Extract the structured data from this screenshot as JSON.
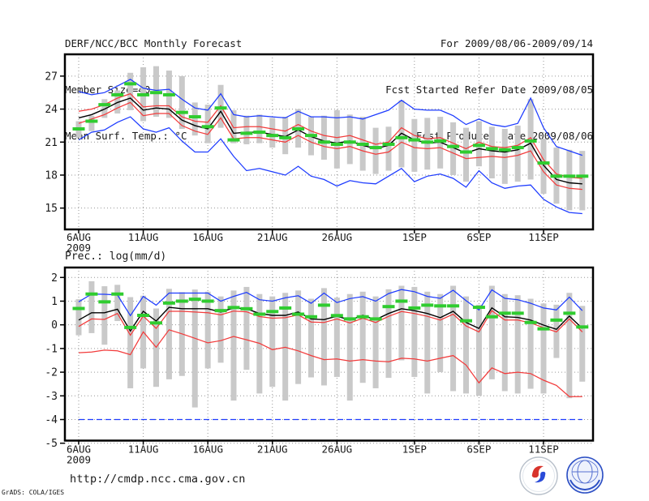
{
  "header": {
    "title": "DERF/NCC/BCC Monthly Forecast",
    "member_size": "Member Size=40",
    "temp_label": "Mean Surf. Temp.: °C",
    "for_range": "For 2009/08/06-2009/09/14",
    "fcst_started": "Fcst Started Refer Date 2009/08/05",
    "fcst_produced": "Fcst Produced Date 2009/08/06"
  },
  "footer": {
    "url": "http://cmdp.ncc.cma.gov.cn",
    "credit": "GrADS: COLA/IGES",
    "bcc_logo_text": "BCC",
    "ncc_logo_text": "NCC"
  },
  "colors": {
    "envelope": "#1e3cff",
    "spread": "#f23b3b",
    "mean": "#000000",
    "obs": "#2fcc2f",
    "bars": "#c9c9c9",
    "grid": "#969696",
    "axis": "#000000"
  },
  "chart_data": [
    {
      "type": "line",
      "id": "temp",
      "title": "Mean Surf. Temp.: °C",
      "ylim": [
        13.06,
        28.98
      ],
      "grid": true,
      "y_ticks": [
        {
          "label": "27",
          "v": 27
        },
        {
          "label": "24",
          "v": 24
        },
        {
          "label": "21",
          "v": 21
        },
        {
          "label": "18",
          "v": 18
        },
        {
          "label": "15",
          "v": 15
        }
      ],
      "x_ticks": [
        {
          "label": "6AUG",
          "sub": "2009",
          "day": 0
        },
        {
          "label": "11AUG",
          "day": 5
        },
        {
          "label": "16AUG",
          "day": 10
        },
        {
          "label": "21AUG",
          "day": 15
        },
        {
          "label": "26AUG",
          "day": 20
        },
        {
          "label": "1SEP",
          "day": 26
        },
        {
          "label": "6SEP",
          "day": 31
        },
        {
          "label": "11SEP",
          "day": 36
        }
      ],
      "n": 40,
      "series": [
        {
          "name": "ensemble-max",
          "color_key": "envelope",
          "style": "line",
          "values": [
            25.6,
            25.3,
            25.5,
            26.1,
            26.7,
            25.9,
            25.7,
            25.8,
            24.9,
            24.1,
            23.9,
            25.4,
            23.5,
            23.3,
            23.4,
            23.3,
            23.2,
            23.8,
            23.3,
            23.3,
            23.2,
            23.3,
            23.1,
            23.5,
            23.9,
            24.8,
            24.0,
            23.9,
            23.9,
            23.4,
            22.6,
            23.1,
            22.6,
            22.4,
            22.7,
            25.0,
            22.3,
            20.6,
            20.2,
            19.8
          ]
        },
        {
          "name": "mean-plus-spread",
          "color_key": "spread",
          "style": "line",
          "values": [
            23.8,
            24.0,
            24.4,
            25.0,
            25.4,
            24.2,
            24.3,
            24.3,
            23.3,
            22.9,
            22.8,
            24.3,
            22.3,
            22.4,
            22.4,
            22.2,
            22.0,
            22.6,
            22.0,
            21.6,
            21.4,
            21.6,
            21.2,
            20.8,
            21.0,
            22.3,
            21.6,
            21.3,
            21.4,
            20.9,
            20.4,
            21.0,
            20.6,
            20.5,
            20.7,
            21.4,
            19.4,
            18.1,
            17.8,
            17.7
          ]
        },
        {
          "name": "ensemble-mean",
          "color_key": "mean",
          "style": "line",
          "values": [
            23.2,
            23.5,
            24.0,
            24.6,
            25.0,
            23.9,
            24.1,
            24.0,
            23.0,
            22.5,
            22.2,
            23.8,
            21.8,
            21.9,
            21.9,
            21.7,
            21.5,
            22.1,
            21.5,
            21.1,
            20.9,
            21.1,
            20.7,
            20.4,
            20.7,
            21.8,
            21.2,
            20.9,
            21.0,
            20.5,
            20.0,
            20.4,
            20.2,
            20.1,
            20.3,
            20.9,
            18.9,
            17.6,
            17.3,
            17.2
          ]
        },
        {
          "name": "mean-minus-spread",
          "color_key": "spread",
          "style": "line",
          "values": [
            22.7,
            23.1,
            23.5,
            24.1,
            24.6,
            23.4,
            23.6,
            23.6,
            22.5,
            22.0,
            21.7,
            23.2,
            21.3,
            21.4,
            21.4,
            21.2,
            21.0,
            21.6,
            21.0,
            20.6,
            20.4,
            20.6,
            20.2,
            19.9,
            20.1,
            21.0,
            20.5,
            20.4,
            20.5,
            20.0,
            19.5,
            19.6,
            19.7,
            19.6,
            19.8,
            20.2,
            18.3,
            17.1,
            16.8,
            16.7
          ]
        },
        {
          "name": "ensemble-min",
          "color_key": "envelope",
          "style": "line",
          "values": [
            21.2,
            21.9,
            22.1,
            22.8,
            23.3,
            22.2,
            21.9,
            22.3,
            21.1,
            20.1,
            20.1,
            21.3,
            19.7,
            18.4,
            18.6,
            18.3,
            18.0,
            18.8,
            17.9,
            17.6,
            17.0,
            17.5,
            17.3,
            17.2,
            17.9,
            18.6,
            17.4,
            17.9,
            18.1,
            17.7,
            16.9,
            18.4,
            17.3,
            16.8,
            17.0,
            17.1,
            15.8,
            15.1,
            14.6,
            14.5
          ]
        },
        {
          "name": "observation-dashes",
          "color_key": "obs",
          "style": "dashes",
          "values": [
            22.2,
            22.9,
            24.4,
            25.3,
            26.3,
            25.3,
            25.5,
            25.3,
            23.7,
            23.3,
            22.4,
            24.1,
            21.2,
            21.8,
            21.9,
            21.6,
            21.4,
            22.2,
            21.6,
            21.0,
            20.8,
            21.0,
            20.8,
            20.5,
            20.8,
            21.4,
            21.2,
            21.0,
            21.1,
            20.6,
            20.1,
            20.7,
            20.4,
            20.3,
            20.5,
            21.1,
            19.1,
            17.9,
            17.9,
            17.9
          ]
        }
      ],
      "bars": {
        "top": [
          22.9,
          23.4,
          24.9,
          25.7,
          27.3,
          27.8,
          27.9,
          27.5,
          27.0,
          24.6,
          24.4,
          26.2,
          23.9,
          23.4,
          23.5,
          23.2,
          23.3,
          24.0,
          23.3,
          23.4,
          23.9,
          23.5,
          23.3,
          22.3,
          22.4,
          24.8,
          23.1,
          23.2,
          23.3,
          22.8,
          22.3,
          22.9,
          22.4,
          22.2,
          22.5,
          24.9,
          21.3,
          20.5,
          20.3,
          20.2
        ],
        "bottom": [
          21.4,
          22.0,
          23.2,
          23.6,
          23.9,
          22.9,
          23.3,
          23.2,
          22.2,
          21.6,
          20.9,
          22.3,
          20.9,
          20.8,
          20.9,
          20.5,
          19.9,
          20.5,
          19.8,
          19.4,
          18.6,
          19.0,
          18.4,
          18.1,
          18.4,
          18.7,
          18.3,
          18.5,
          18.6,
          18.0,
          17.4,
          18.8,
          17.7,
          17.2,
          17.4,
          17.6,
          16.3,
          15.4,
          14.8,
          14.8
        ]
      }
    },
    {
      "type": "line",
      "id": "precip",
      "title": "Prec.: log(mm/d)",
      "ylim": [
        -4.89,
        2.42
      ],
      "grid": true,
      "y_ticks": [
        {
          "label": "2",
          "v": 2
        },
        {
          "label": "1",
          "v": 1
        },
        {
          "label": "0",
          "v": 0
        },
        {
          "label": "-1",
          "v": -1
        },
        {
          "label": "-2",
          "v": -2
        },
        {
          "label": "-3",
          "v": -3
        },
        {
          "label": "-4",
          "v": -4
        },
        {
          "label": "-5",
          "v": -5
        }
      ],
      "x_ticks": [
        {
          "label": "6AUG",
          "sub": "2009",
          "day": 0
        },
        {
          "label": "11AUG",
          "day": 5
        },
        {
          "label": "16AUG",
          "day": 10
        },
        {
          "label": "21AUG",
          "day": 15
        },
        {
          "label": "26AUG",
          "day": 20
        },
        {
          "label": "1SEP",
          "day": 26
        },
        {
          "label": "6SEP",
          "day": 31
        },
        {
          "label": "11SEP",
          "day": 36
        }
      ],
      "n": 40,
      "series": [
        {
          "name": "ensemble-max",
          "color_key": "envelope",
          "style": "line",
          "values": [
            0.97,
            1.3,
            1.29,
            1.26,
            0.39,
            1.2,
            0.83,
            1.34,
            1.34,
            1.34,
            1.34,
            1.0,
            1.2,
            1.37,
            1.06,
            1.0,
            1.14,
            1.23,
            0.91,
            1.34,
            0.94,
            1.11,
            1.19,
            1.0,
            1.32,
            1.49,
            1.4,
            1.2,
            1.12,
            1.46,
            1.02,
            0.63,
            1.48,
            1.12,
            1.06,
            0.91,
            0.71,
            0.63,
            1.17,
            0.6
          ]
        },
        {
          "name": "mean-plus-spread",
          "color_key": "spread",
          "style": "line",
          "values": [
            -0.07,
            0.25,
            0.23,
            0.48,
            -0.44,
            0.37,
            -0.15,
            0.57,
            0.57,
            0.54,
            0.51,
            0.42,
            0.58,
            0.55,
            0.35,
            0.28,
            0.3,
            0.42,
            0.12,
            0.1,
            0.25,
            0.08,
            0.28,
            0.1,
            0.36,
            0.56,
            0.48,
            0.36,
            0.2,
            0.45,
            -0.05,
            -0.3,
            0.6,
            0.2,
            0.2,
            0.08,
            -0.12,
            -0.3,
            0.25,
            -0.3
          ]
        },
        {
          "name": "ensemble-mean",
          "color_key": "mean",
          "style": "line",
          "values": [
            0.2,
            0.51,
            0.51,
            0.66,
            -0.26,
            0.57,
            0.16,
            0.74,
            0.68,
            0.68,
            0.68,
            0.54,
            0.71,
            0.68,
            0.48,
            0.4,
            0.4,
            0.54,
            0.25,
            0.22,
            0.37,
            0.2,
            0.4,
            0.22,
            0.48,
            0.68,
            0.6,
            0.48,
            0.3,
            0.57,
            0.1,
            -0.15,
            0.72,
            0.34,
            0.31,
            0.2,
            -0.01,
            -0.19,
            0.37,
            -0.15
          ]
        },
        {
          "name": "mean-minus-spread",
          "color_key": "spread",
          "style": "line",
          "values": [
            -1.18,
            -1.15,
            -1.07,
            -1.1,
            -1.26,
            -0.3,
            -0.95,
            -0.21,
            -0.38,
            -0.57,
            -0.76,
            -0.67,
            -0.49,
            -0.63,
            -0.78,
            -1.05,
            -0.95,
            -1.1,
            -1.3,
            -1.47,
            -1.44,
            -1.53,
            -1.47,
            -1.53,
            -1.56,
            -1.41,
            -1.44,
            -1.53,
            -1.41,
            -1.3,
            -1.7,
            -2.45,
            -1.82,
            -2.06,
            -2.0,
            -2.06,
            -2.34,
            -2.56,
            -3.03,
            -3.03
          ]
        },
        {
          "name": "ensemble-min-floor",
          "color_key": "envelope",
          "style": "dashed-line",
          "values": [
            -4,
            -4,
            -4,
            -4,
            -4,
            -4,
            -4,
            -4,
            -4,
            -4,
            -4,
            -4,
            -4,
            -4,
            -4,
            -4,
            -4,
            -4,
            -4,
            -4,
            -4,
            -4,
            -4,
            -4,
            -4,
            -4,
            -4,
            -4,
            -4,
            -4,
            -4,
            -4,
            -4,
            -4,
            -4,
            -4,
            -4,
            -4,
            -4,
            -4
          ]
        },
        {
          "name": "observation-dashes",
          "color_key": "obs",
          "style": "dashes",
          "values": [
            0.69,
            1.3,
            0.97,
            1.3,
            -0.11,
            0.4,
            0.08,
            0.92,
            1.0,
            1.08,
            1.0,
            0.6,
            0.73,
            0.68,
            0.45,
            0.56,
            0.71,
            0.45,
            0.34,
            0.83,
            0.39,
            0.25,
            0.34,
            0.25,
            0.77,
            1.0,
            0.71,
            0.83,
            0.8,
            0.8,
            0.17,
            0.74,
            0.34,
            0.49,
            0.49,
            0.1,
            -0.17,
            0.2,
            0.49,
            -0.09
          ]
        }
      ],
      "bars": {
        "top": [
          1.08,
          1.84,
          1.63,
          1.69,
          1.17,
          1.23,
          0.69,
          1.52,
          1.38,
          1.49,
          1.4,
          1.2,
          1.45,
          1.6,
          1.3,
          1.2,
          1.35,
          1.45,
          1.1,
          1.55,
          1.15,
          1.3,
          1.4,
          1.2,
          1.5,
          1.65,
          1.6,
          1.4,
          1.3,
          1.65,
          1.2,
          0.85,
          1.65,
          1.3,
          1.25,
          1.1,
          0.9,
          0.85,
          1.35,
          0.8
        ],
        "bottom": [
          -0.44,
          -0.35,
          -0.84,
          0.16,
          -2.68,
          -1.84,
          -2.62,
          -2.3,
          -2.16,
          -3.49,
          -1.84,
          -1.6,
          -3.2,
          -1.9,
          -2.9,
          -2.62,
          -3.2,
          -2.5,
          -2.22,
          -2.56,
          -2.2,
          -3.2,
          -2.45,
          -2.68,
          -2.24,
          -1.5,
          -2.2,
          -2.9,
          -2.0,
          -2.8,
          -2.9,
          -3.0,
          -2.3,
          -2.8,
          -2.9,
          -2.7,
          -2.9,
          -1.4,
          -3.1,
          -2.4
        ]
      }
    }
  ]
}
